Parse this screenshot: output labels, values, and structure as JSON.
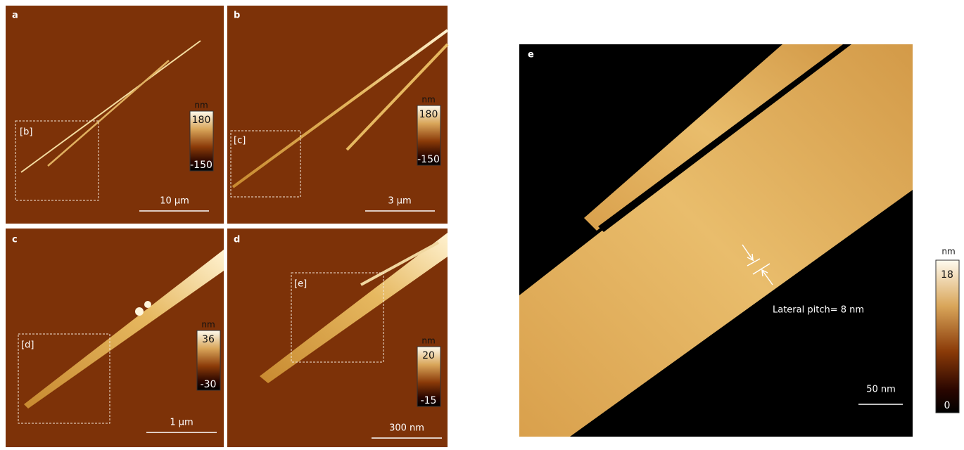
{
  "panels": [
    {
      "label": "a",
      "inset_label": "[b]",
      "colorbar": {
        "unit": "nm",
        "max": "180",
        "min": "-150"
      },
      "scale_bar": "10 µm"
    },
    {
      "label": "b",
      "inset_label": "[c]",
      "colorbar": {
        "unit": "nm",
        "max": "180",
        "min": "-150"
      },
      "scale_bar": "3 µm"
    },
    {
      "label": "c",
      "inset_label": "[d]",
      "colorbar": {
        "unit": "nm",
        "max": "36",
        "min": "-30"
      },
      "scale_bar": "1 µm"
    },
    {
      "label": "d",
      "inset_label": "[e]",
      "colorbar": {
        "unit": "nm",
        "max": "20",
        "min": "-15"
      },
      "scale_bar": "300 nm"
    }
  ],
  "panel_e": {
    "label": "e",
    "annotation": "Lateral pitch= 8 nm",
    "colorbar": {
      "unit": "nm",
      "max": "18",
      "min": "0"
    },
    "scale_bar": "50 nm"
  }
}
